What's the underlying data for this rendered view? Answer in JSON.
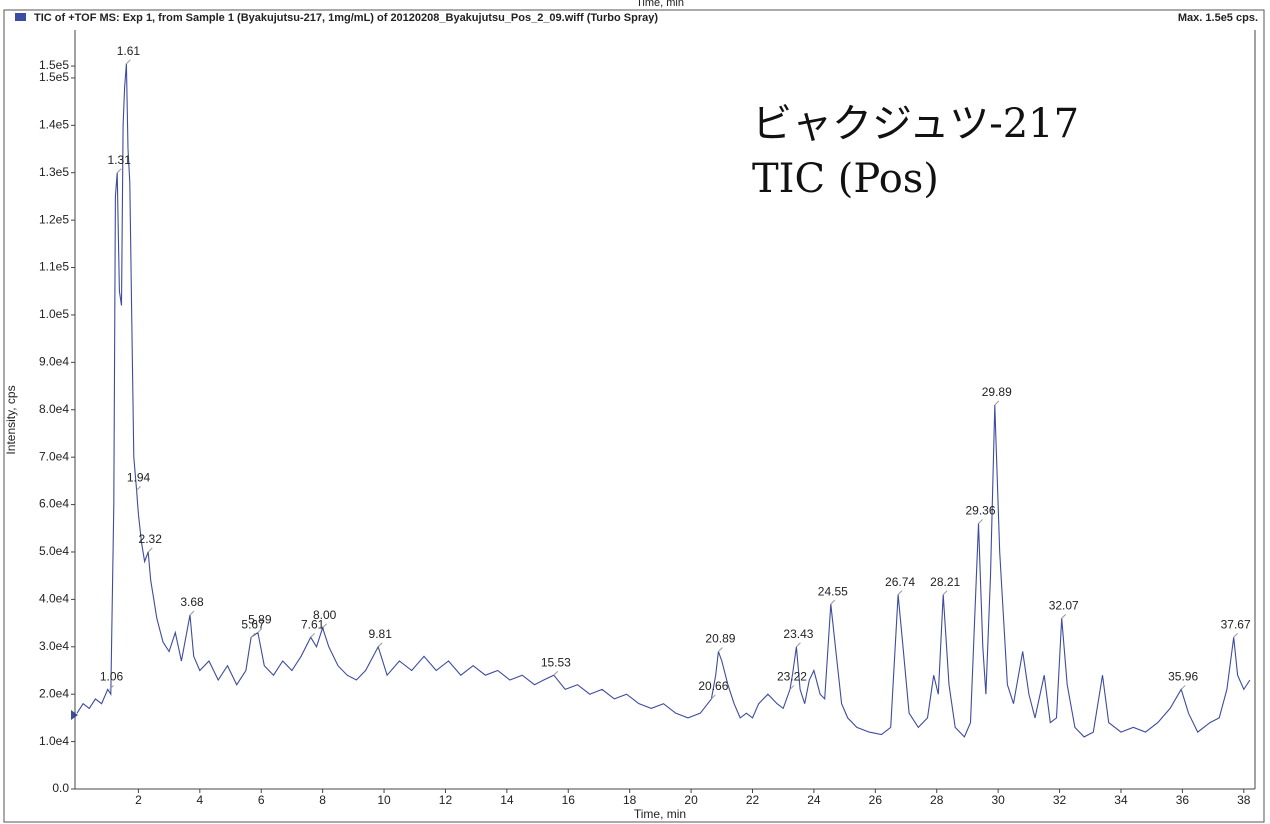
{
  "chart_data": {
    "type": "line",
    "clipped_label": "Time, min",
    "title": "TIC of +TOF MS: Exp 1, from Sample 1 (Byakujutsu-217, 1mg/mL) of 20120208_Byakujutsu_Pos_2_09.wiff (Turbo Spray)",
    "max_label": "Max. 1.5e5 cps.",
    "annotation": [
      "ビャクジュツ-217",
      "TIC (Pos)"
    ],
    "x_label": "Time, min",
    "y_label": "Intensity, cps",
    "xlim": [
      0,
      38.3
    ],
    "ylim": [
      0,
      158000
    ],
    "xticks": [
      2,
      4,
      6,
      8,
      10,
      12,
      14,
      16,
      18,
      20,
      22,
      24,
      26,
      28,
      30,
      32,
      34,
      36,
      38
    ],
    "yticks": [
      {
        "value": 0,
        "label": "0.0"
      },
      {
        "value": 10000,
        "label": "1.0e4"
      },
      {
        "value": 20000,
        "label": "2.0e4"
      },
      {
        "value": 30000,
        "label": "3.0e4"
      },
      {
        "value": 40000,
        "label": "4.0e4"
      },
      {
        "value": 50000,
        "label": "5.0e4"
      },
      {
        "value": 60000,
        "label": "6.0e4"
      },
      {
        "value": 70000,
        "label": "7.0e4"
      },
      {
        "value": 80000,
        "label": "8.0e4"
      },
      {
        "value": 90000,
        "label": "9.0e4"
      },
      {
        "value": 100000,
        "label": "1.0e5"
      },
      {
        "value": 110000,
        "label": "1.1e5"
      },
      {
        "value": 120000,
        "label": "1.2e5"
      },
      {
        "value": 130000,
        "label": "1.3e5"
      },
      {
        "value": 140000,
        "label": "1.4e5"
      },
      {
        "value": 150000,
        "label": "1.5e5"
      },
      {
        "value": 152500,
        "label": "1.5e5"
      }
    ],
    "x": [
      0.0,
      0.2,
      0.4,
      0.6,
      0.8,
      1.0,
      1.1,
      1.2,
      1.25,
      1.31,
      1.38,
      1.45,
      1.5,
      1.55,
      1.61,
      1.66,
      1.72,
      1.78,
      1.85,
      1.94,
      2.0,
      2.1,
      2.2,
      2.32,
      2.4,
      2.5,
      2.6,
      2.8,
      3.0,
      3.2,
      3.4,
      3.68,
      3.8,
      4.0,
      4.3,
      4.6,
      4.9,
      5.2,
      5.5,
      5.67,
      5.89,
      6.1,
      6.4,
      6.7,
      7.0,
      7.3,
      7.61,
      7.8,
      8.0,
      8.2,
      8.5,
      8.8,
      9.1,
      9.4,
      9.81,
      10.1,
      10.5,
      10.9,
      11.3,
      11.7,
      12.1,
      12.5,
      12.9,
      13.3,
      13.7,
      14.1,
      14.5,
      14.9,
      15.2,
      15.53,
      15.9,
      16.3,
      16.7,
      17.1,
      17.5,
      17.9,
      18.3,
      18.7,
      19.1,
      19.5,
      19.9,
      20.3,
      20.66,
      20.8,
      20.89,
      21.0,
      21.2,
      21.4,
      21.6,
      21.8,
      22.0,
      22.2,
      22.5,
      22.8,
      23.0,
      23.22,
      23.3,
      23.43,
      23.55,
      23.7,
      23.85,
      24.0,
      24.2,
      24.35,
      24.55,
      24.7,
      24.9,
      25.1,
      25.4,
      25.8,
      26.2,
      26.5,
      26.74,
      26.9,
      27.1,
      27.4,
      27.7,
      27.9,
      28.05,
      28.21,
      28.4,
      28.6,
      28.9,
      29.1,
      29.36,
      29.5,
      29.6,
      29.75,
      29.89,
      30.05,
      30.3,
      30.5,
      30.8,
      31.0,
      31.2,
      31.5,
      31.7,
      31.9,
      32.07,
      32.25,
      32.5,
      32.8,
      33.1,
      33.4,
      33.6,
      34.0,
      34.4,
      34.8,
      35.2,
      35.6,
      35.96,
      36.2,
      36.5,
      36.9,
      37.2,
      37.45,
      37.67,
      37.8,
      38.0,
      38.2
    ],
    "series": [
      {
        "color": "#3d4c9e",
        "values": [
          16000,
          18000,
          17000,
          19000,
          18000,
          21000,
          20000,
          60000,
          125000,
          130000,
          105000,
          102000,
          140000,
          148000,
          153000,
          135000,
          128000,
          100000,
          70000,
          63000,
          58000,
          52000,
          48000,
          50000,
          44000,
          40000,
          36000,
          31000,
          29000,
          33000,
          27000,
          36700,
          28000,
          25000,
          27000,
          23000,
          26000,
          22000,
          25000,
          32000,
          33000,
          26000,
          24000,
          27000,
          25000,
          28000,
          32000,
          30000,
          34000,
          30000,
          26000,
          24000,
          23000,
          25000,
          30000,
          24000,
          27000,
          25000,
          28000,
          25000,
          27000,
          24000,
          26000,
          24000,
          25000,
          23000,
          24000,
          22000,
          23000,
          24000,
          21000,
          22000,
          20000,
          21000,
          19000,
          20000,
          18000,
          17000,
          18000,
          16000,
          15000,
          16000,
          19000,
          24000,
          29000,
          27000,
          22000,
          18000,
          15000,
          16000,
          15000,
          18000,
          20000,
          18000,
          17000,
          21000,
          24000,
          30000,
          21000,
          18000,
          23000,
          25000,
          20000,
          19000,
          39000,
          30000,
          18000,
          15000,
          13000,
          12000,
          11500,
          13000,
          41000,
          30000,
          16000,
          13000,
          15000,
          24000,
          20000,
          41000,
          22000,
          13000,
          11000,
          14000,
          56000,
          30000,
          20000,
          45000,
          81000,
          50000,
          22000,
          18000,
          29000,
          20000,
          15000,
          24000,
          14000,
          15000,
          36000,
          22000,
          13000,
          11000,
          12000,
          24000,
          14000,
          12000,
          13000,
          12000,
          14000,
          17000,
          21000,
          16000,
          12000,
          14000,
          15000,
          21000,
          32000,
          24000,
          21000,
          23000
        ]
      }
    ],
    "peaks": [
      {
        "x": 1.06,
        "y": 21000,
        "label": "1.06"
      },
      {
        "x": 1.31,
        "y": 130000,
        "label": "1.31"
      },
      {
        "x": 1.61,
        "y": 153000,
        "label": "1.61"
      },
      {
        "x": 1.94,
        "y": 63000,
        "label": "1.94"
      },
      {
        "x": 2.32,
        "y": 50000,
        "label": "2.32"
      },
      {
        "x": 3.68,
        "y": 36700,
        "label": "3.68"
      },
      {
        "x": 5.67,
        "y": 32000,
        "label": "5.67"
      },
      {
        "x": 5.89,
        "y": 33000,
        "label": "5.89"
      },
      {
        "x": 7.61,
        "y": 32000,
        "label": "7.61"
      },
      {
        "x": 8.0,
        "y": 34000,
        "label": "8.00"
      },
      {
        "x": 9.81,
        "y": 30000,
        "label": "9.81"
      },
      {
        "x": 15.53,
        "y": 24000,
        "label": "15.53"
      },
      {
        "x": 20.66,
        "y": 19000,
        "label": "20.66"
      },
      {
        "x": 20.89,
        "y": 29000,
        "label": "20.89"
      },
      {
        "x": 23.22,
        "y": 21000,
        "label": "23.22"
      },
      {
        "x": 23.43,
        "y": 30000,
        "label": "23.43"
      },
      {
        "x": 24.55,
        "y": 39000,
        "label": "24.55"
      },
      {
        "x": 26.74,
        "y": 41000,
        "label": "26.74"
      },
      {
        "x": 28.21,
        "y": 41000,
        "label": "28.21"
      },
      {
        "x": 29.36,
        "y": 56000,
        "label": "29.36"
      },
      {
        "x": 29.89,
        "y": 81000,
        "label": "29.89"
      },
      {
        "x": 32.07,
        "y": 36000,
        "label": "32.07"
      },
      {
        "x": 35.96,
        "y": 21000,
        "label": "35.96"
      },
      {
        "x": 37.67,
        "y": 32000,
        "label": "37.67"
      }
    ]
  }
}
